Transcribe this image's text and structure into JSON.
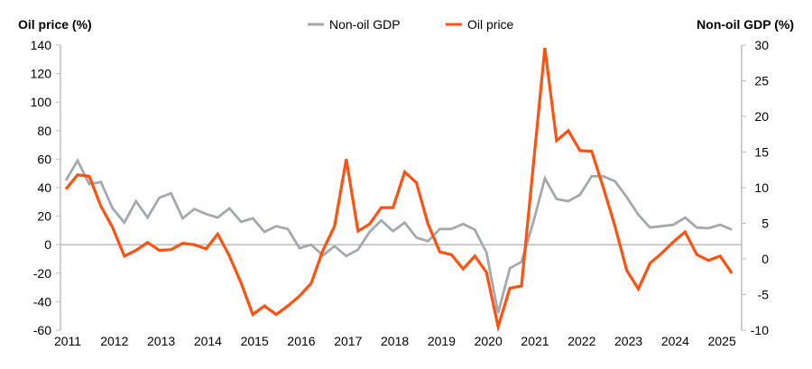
{
  "chart_data": {
    "type": "line",
    "left_axis": {
      "title": "Oil price (%)",
      "range": [
        -60,
        140
      ],
      "ticks": [
        140,
        120,
        100,
        80,
        60,
        40,
        20,
        0,
        -20,
        -40,
        -60
      ]
    },
    "right_axis": {
      "title": "Non-oil GDP (%)",
      "range": [
        -10,
        30
      ],
      "ticks": [
        30,
        25,
        20,
        15,
        10,
        5,
        0,
        -5,
        -10
      ]
    },
    "x_tick_labels": [
      "2011",
      "2012",
      "2013",
      "2014",
      "2015",
      "2016",
      "2017",
      "2018",
      "2019",
      "2020",
      "2021",
      "2022",
      "2023",
      "2024",
      "2025"
    ],
    "x_frequency": "quarterly, 2011 Q1 – 2025 Q2",
    "legend_position": "top-center",
    "grid": false,
    "series": [
      {
        "name": "Non-oil GDP",
        "axis": "right",
        "color": "#A4A8AF",
        "values": [
          11.0,
          13.8,
          10.5,
          10.8,
          7.1,
          5.1,
          8.1,
          5.8,
          8.6,
          9.2,
          5.7,
          7.0,
          6.3,
          5.8,
          7.1,
          5.2,
          5.7,
          3.8,
          4.6,
          4.2,
          1.5,
          2.0,
          0.5,
          1.8,
          0.4,
          1.3,
          3.8,
          5.4,
          3.9,
          5.1,
          3.0,
          2.5,
          4.2,
          4.2,
          4.9,
          4.1,
          0.9,
          -7.6,
          -1.3,
          -0.4,
          5.1,
          11.3,
          8.4,
          8.1,
          9.0,
          11.6,
          11.6,
          10.9,
          8.7,
          6.2,
          4.4,
          4.6,
          4.8,
          5.8,
          4.4,
          4.3,
          4.8,
          4.1
        ]
      },
      {
        "name": "Oil price",
        "axis": "left",
        "color": "#FF5210",
        "values": [
          39,
          49,
          48,
          27,
          12,
          -8,
          -4,
          1.5,
          -4,
          -3.5,
          1,
          0,
          -3,
          7.5,
          -8,
          -27,
          -49,
          -43,
          -49,
          -43,
          -36,
          -27,
          -4,
          13,
          60,
          9.5,
          14.5,
          26,
          26,
          51,
          43.5,
          14.5,
          -5,
          -7,
          -17,
          -8,
          -19.5,
          -57.5,
          -30.5,
          -29,
          55,
          138,
          73,
          80,
          66,
          65.5,
          40,
          13,
          -18,
          -31,
          -13,
          -6,
          2,
          9,
          -7,
          -11,
          -8,
          -20
        ]
      }
    ]
  }
}
